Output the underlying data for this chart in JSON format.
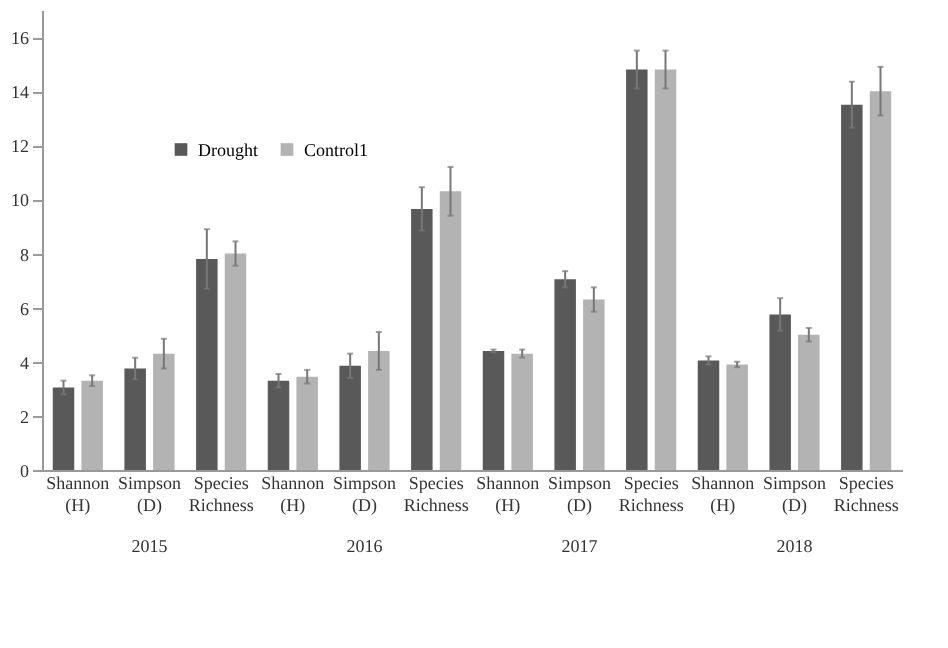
{
  "chart_data": {
    "type": "bar",
    "categories": [
      "Shannon (H)",
      "Simpson (D)",
      "Species Richness",
      "Shannon (H)",
      "Simpson (D)",
      "Species Richness",
      "Shannon (H)",
      "Simpson (D)",
      "Species Richness",
      "Shannon (H)",
      "Simpson (D)",
      "Species Richness"
    ],
    "series": [
      {
        "name": "Drought",
        "color": "#595959",
        "values": [
          3.05,
          3.75,
          7.8,
          3.3,
          3.85,
          9.65,
          4.4,
          7.05,
          14.8,
          4.05,
          5.75,
          13.5
        ],
        "errors": [
          0.25,
          0.4,
          1.1,
          0.25,
          0.45,
          0.8,
          0.05,
          0.3,
          0.7,
          0.15,
          0.6,
          0.85
        ]
      },
      {
        "name": "Control1",
        "color": "#b3b3b3",
        "values": [
          3.3,
          4.3,
          8.0,
          3.45,
          4.4,
          10.3,
          4.3,
          6.3,
          14.8,
          3.9,
          5.0,
          14.0
        ],
        "errors": [
          0.2,
          0.55,
          0.45,
          0.25,
          0.7,
          0.9,
          0.15,
          0.45,
          0.7,
          0.1,
          0.25,
          0.9
        ]
      }
    ],
    "annotations": [
      "2015",
      "2016",
      "2017",
      "2018"
    ],
    "ylim": [
      0,
      17
    ],
    "yticks": [
      0,
      2,
      4,
      6,
      8,
      10,
      12,
      14,
      16
    ],
    "grid": false,
    "legend": "top left"
  }
}
